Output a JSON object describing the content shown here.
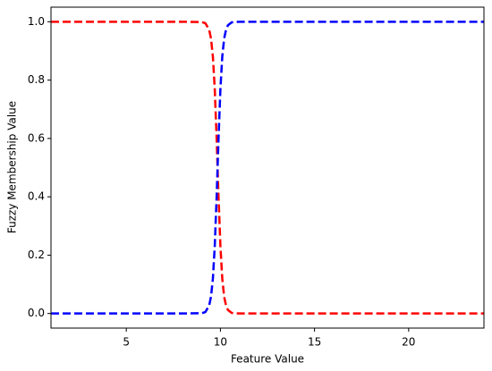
{
  "chart_data": {
    "type": "line",
    "xlabel": "Feature Value",
    "ylabel": "Fuzzy Membership Value",
    "x": [
      1,
      2,
      3,
      4,
      5,
      6,
      7,
      8,
      9,
      9.2,
      9.4,
      9.5,
      9.6,
      9.7,
      9.8,
      9.9,
      10,
      10.1,
      10.2,
      10.3,
      10.4,
      10.6,
      11,
      12,
      13,
      14,
      15,
      16,
      17,
      18,
      19,
      20,
      21,
      22,
      23,
      24
    ],
    "series": [
      {
        "color": "#ff0000",
        "dash": true,
        "values": [
          1,
          1,
          1,
          1,
          1,
          1,
          1,
          1,
          0.999,
          0.995,
          0.973,
          0.943,
          0.881,
          0.769,
          0.599,
          0.401,
          0.231,
          0.119,
          0.057,
          0.027,
          0.012,
          0.002,
          0,
          0,
          0,
          0,
          0,
          0,
          0,
          0,
          0,
          0,
          0,
          0,
          0,
          0
        ]
      },
      {
        "color": "#0000ff",
        "dash": true,
        "values": [
          0,
          0,
          0,
          0,
          0,
          0,
          0,
          0,
          0.001,
          0.005,
          0.027,
          0.057,
          0.119,
          0.231,
          0.401,
          0.599,
          0.769,
          0.881,
          0.943,
          0.973,
          0.988,
          0.998,
          1,
          1,
          1,
          1,
          1,
          1,
          1,
          1,
          1,
          1,
          1,
          1,
          1,
          1
        ]
      }
    ],
    "xlim": [
      1,
      24
    ],
    "ylim": [
      -0.05,
      1.05
    ],
    "xticks": [
      5,
      10,
      15,
      20
    ],
    "yticks": [
      {
        "value": 0,
        "label": "0.0"
      },
      0.2,
      0.4,
      0.6,
      0.8,
      {
        "value": 1,
        "label": "1.0"
      }
    ]
  }
}
